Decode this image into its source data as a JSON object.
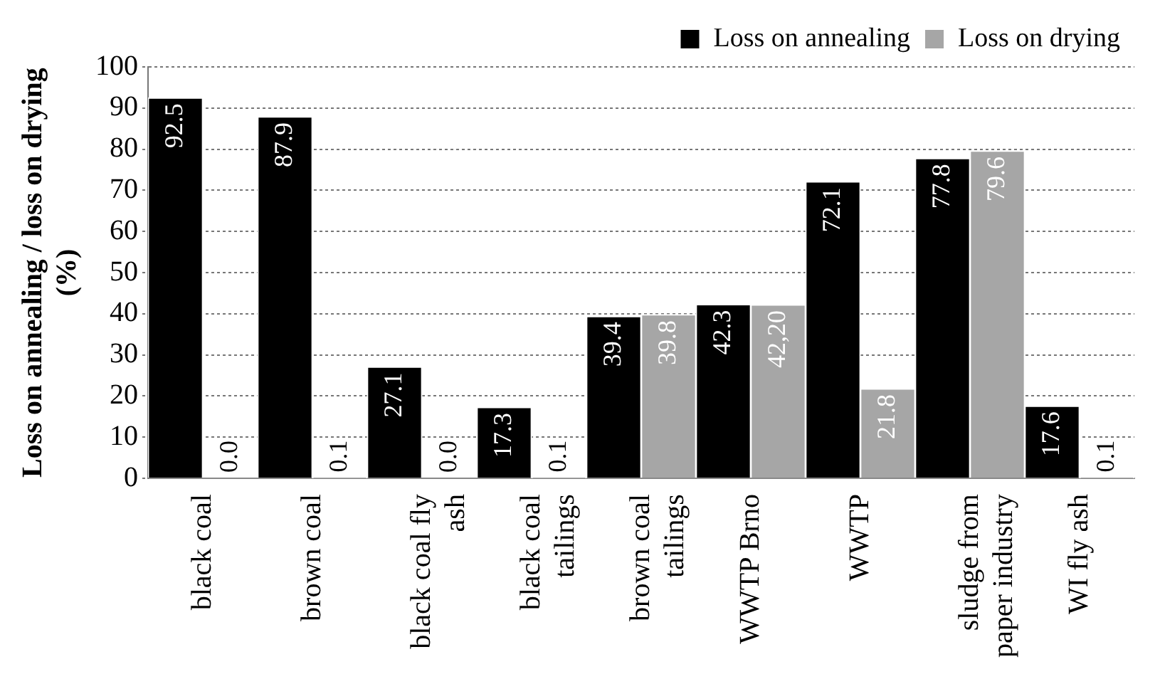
{
  "chart_data": {
    "type": "bar",
    "ylabel": "Loss on annealing / loss on drying (%)",
    "categories": [
      "black coal",
      "brown coal",
      "black coal fly ash",
      "black coal tailings",
      "brown coal tailings",
      "WWTP Brno",
      "WWTP",
      "sludge from paper industry",
      "WI fly ash"
    ],
    "series": [
      {
        "name": "Loss on annealing",
        "color": "#000000",
        "values": [
          92.5,
          87.9,
          27.1,
          17.3,
          39.4,
          42.3,
          72.1,
          77.8,
          17.6
        ],
        "value_labels": [
          "92.5",
          "87.9",
          "27.1",
          "17.3",
          "39.4",
          "42.3",
          "72.1",
          "77.8",
          "17.6"
        ]
      },
      {
        "name": "Loss on drying",
        "color": "#a6a6a6",
        "values": [
          0.0,
          0.1,
          0.0,
          0.1,
          39.8,
          42.2,
          21.8,
          79.6,
          0.1
        ],
        "value_labels": [
          "0.0",
          "0.1",
          "0.0",
          "0.1",
          "39.8",
          "42,20",
          "21.8",
          "79.6",
          "0.1"
        ]
      }
    ],
    "ylim": [
      0,
      100
    ],
    "yticks": [
      0,
      10,
      20,
      30,
      40,
      50,
      60,
      70,
      80,
      90,
      100
    ],
    "grid": "y",
    "legend": "top right"
  }
}
